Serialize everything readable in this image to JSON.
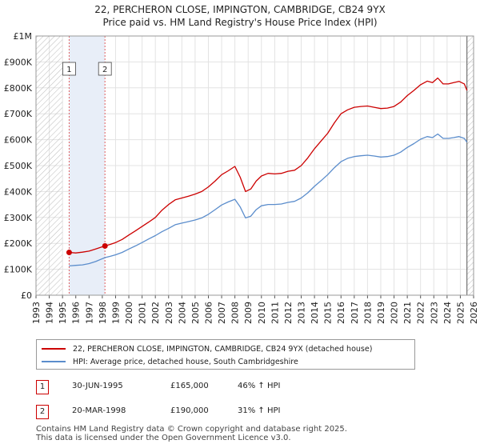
{
  "title_line1": "22, PERCHERON CLOSE, IMPINGTON, CAMBRIDGE, CB24 9YX",
  "title_line2": "Price paid vs. HM Land Registry's House Price Index (HPI)",
  "chart_data": {
    "type": "line",
    "title": "22, PERCHERON CLOSE, IMPINGTON, CAMBRIDGE, CB24 9YX — Price paid vs. HM Land Registry's House Price Index (HPI)",
    "xlabel": "",
    "ylabel": "",
    "xlim": [
      1993,
      2026
    ],
    "ylim": [
      0,
      1000000
    ],
    "y_ticks": [
      {
        "value": 0,
        "label": "£0"
      },
      {
        "value": 100000,
        "label": "£100K"
      },
      {
        "value": 200000,
        "label": "£200K"
      },
      {
        "value": 300000,
        "label": "£300K"
      },
      {
        "value": 400000,
        "label": "£400K"
      },
      {
        "value": 500000,
        "label": "£500K"
      },
      {
        "value": 600000,
        "label": "£600K"
      },
      {
        "value": 700000,
        "label": "£700K"
      },
      {
        "value": 800000,
        "label": "£800K"
      },
      {
        "value": 900000,
        "label": "£900K"
      },
      {
        "value": 1000000,
        "label": "£1M"
      }
    ],
    "x_ticks": [
      "1993",
      "1994",
      "1995",
      "1996",
      "1997",
      "1998",
      "1999",
      "2000",
      "2001",
      "2002",
      "2003",
      "2004",
      "2005",
      "2006",
      "2007",
      "2008",
      "2009",
      "2010",
      "2011",
      "2012",
      "2013",
      "2014",
      "2015",
      "2016",
      "2017",
      "2018",
      "2019",
      "2020",
      "2021",
      "2022",
      "2023",
      "2024",
      "2025",
      "2026"
    ],
    "grid": true,
    "hatched_ranges": [
      [
        1993,
        1995.0
      ],
      [
        2025.5,
        2026
      ]
    ],
    "shaded_range": [
      1995.5,
      1998.2
    ],
    "series": [
      {
        "name": "22, PERCHERON CLOSE, IMPINGTON, CAMBRIDGE, CB24 9YX (detached house)",
        "color": "#cc0000",
        "x": [
          1995.5,
          1996,
          1996.5,
          1997,
          1997.5,
          1998.2,
          1998.6,
          1999,
          1999.5,
          2000,
          2000.5,
          2001,
          2001.5,
          2002,
          2002.5,
          2003,
          2003.5,
          2004,
          2004.5,
          2005,
          2005.5,
          2006,
          2006.5,
          2007,
          2007.5,
          2008,
          2008.4,
          2008.8,
          2009.2,
          2009.6,
          2010,
          2010.5,
          2011,
          2011.5,
          2012,
          2012.5,
          2013,
          2013.5,
          2014,
          2014.5,
          2015,
          2015.5,
          2016,
          2016.5,
          2017,
          2017.5,
          2018,
          2018.5,
          2019,
          2019.5,
          2020,
          2020.5,
          2021,
          2021.5,
          2022,
          2022.5,
          2022.9,
          2023.3,
          2023.7,
          2024.1,
          2024.5,
          2024.9,
          2025.3,
          2025.5
        ],
        "y": [
          165000,
          163000,
          166000,
          170000,
          178000,
          190000,
          196000,
          203000,
          215000,
          232000,
          248000,
          265000,
          282000,
          300000,
          328000,
          350000,
          368000,
          375000,
          382000,
          390000,
          400000,
          418000,
          440000,
          465000,
          480000,
          497000,
          455000,
          400000,
          410000,
          440000,
          460000,
          470000,
          468000,
          470000,
          478000,
          482000,
          500000,
          530000,
          565000,
          595000,
          625000,
          665000,
          700000,
          715000,
          725000,
          728000,
          730000,
          725000,
          720000,
          722000,
          728000,
          745000,
          770000,
          790000,
          812000,
          826000,
          820000,
          838000,
          815000,
          815000,
          820000,
          825000,
          815000,
          790000
        ]
      },
      {
        "name": "HPI: Average price, detached house, South Cambridgeshire",
        "color": "#5b8dcc",
        "x": [
          1995.5,
          1996,
          1996.5,
          1997,
          1997.5,
          1998.2,
          1998.6,
          1999,
          1999.5,
          2000,
          2000.5,
          2001,
          2001.5,
          2002,
          2002.5,
          2003,
          2003.5,
          2004,
          2004.5,
          2005,
          2005.5,
          2006,
          2006.5,
          2007,
          2007.5,
          2008,
          2008.4,
          2008.8,
          2009.2,
          2009.6,
          2010,
          2010.5,
          2011,
          2011.5,
          2012,
          2012.5,
          2013,
          2013.5,
          2014,
          2014.5,
          2015,
          2015.5,
          2016,
          2016.5,
          2017,
          2017.5,
          2018,
          2018.5,
          2019,
          2019.5,
          2020,
          2020.5,
          2021,
          2021.5,
          2022,
          2022.5,
          2022.9,
          2023.3,
          2023.7,
          2024.1,
          2024.5,
          2024.9,
          2025.3,
          2025.5
        ],
        "y": [
          113000,
          115000,
          117000,
          122000,
          130000,
          145000,
          150000,
          156000,
          165000,
          178000,
          190000,
          203000,
          217000,
          230000,
          245000,
          258000,
          272000,
          278000,
          284000,
          290000,
          298000,
          312000,
          330000,
          348000,
          360000,
          370000,
          340000,
          298000,
          305000,
          330000,
          345000,
          350000,
          350000,
          352000,
          358000,
          362000,
          375000,
          395000,
          420000,
          442000,
          465000,
          492000,
          515000,
          528000,
          535000,
          538000,
          540000,
          537000,
          533000,
          535000,
          540000,
          552000,
          570000,
          585000,
          602000,
          612000,
          608000,
          622000,
          605000,
          605000,
          608000,
          612000,
          605000,
          590000
        ]
      }
    ],
    "transactions": [
      {
        "id": "1",
        "date": "30-JUN-1995",
        "x": 1995.5,
        "price_value": 165000,
        "price": "£165,000",
        "hpi": "46% ↑ HPI"
      },
      {
        "id": "2",
        "date": "20-MAR-1998",
        "x": 1998.2,
        "price_value": 190000,
        "price": "£190,000",
        "hpi": "31% ↑ HPI"
      }
    ]
  },
  "legend": {
    "property_label": "22, PERCHERON CLOSE, IMPINGTON, CAMBRIDGE, CB24 9YX (detached house)",
    "hpi_label": "HPI: Average price, detached house, South Cambridgeshire"
  },
  "footer_line1": "Contains HM Land Registry data © Crown copyright and database right 2025.",
  "footer_line2": "This data is licensed under the Open Government Licence v3.0.",
  "colors": {
    "property": "#cc0000",
    "hpi": "#5b8dcc",
    "shade": "#e8eef8",
    "grid": "#e3e3e3",
    "hatch": "#bbbbbb"
  }
}
